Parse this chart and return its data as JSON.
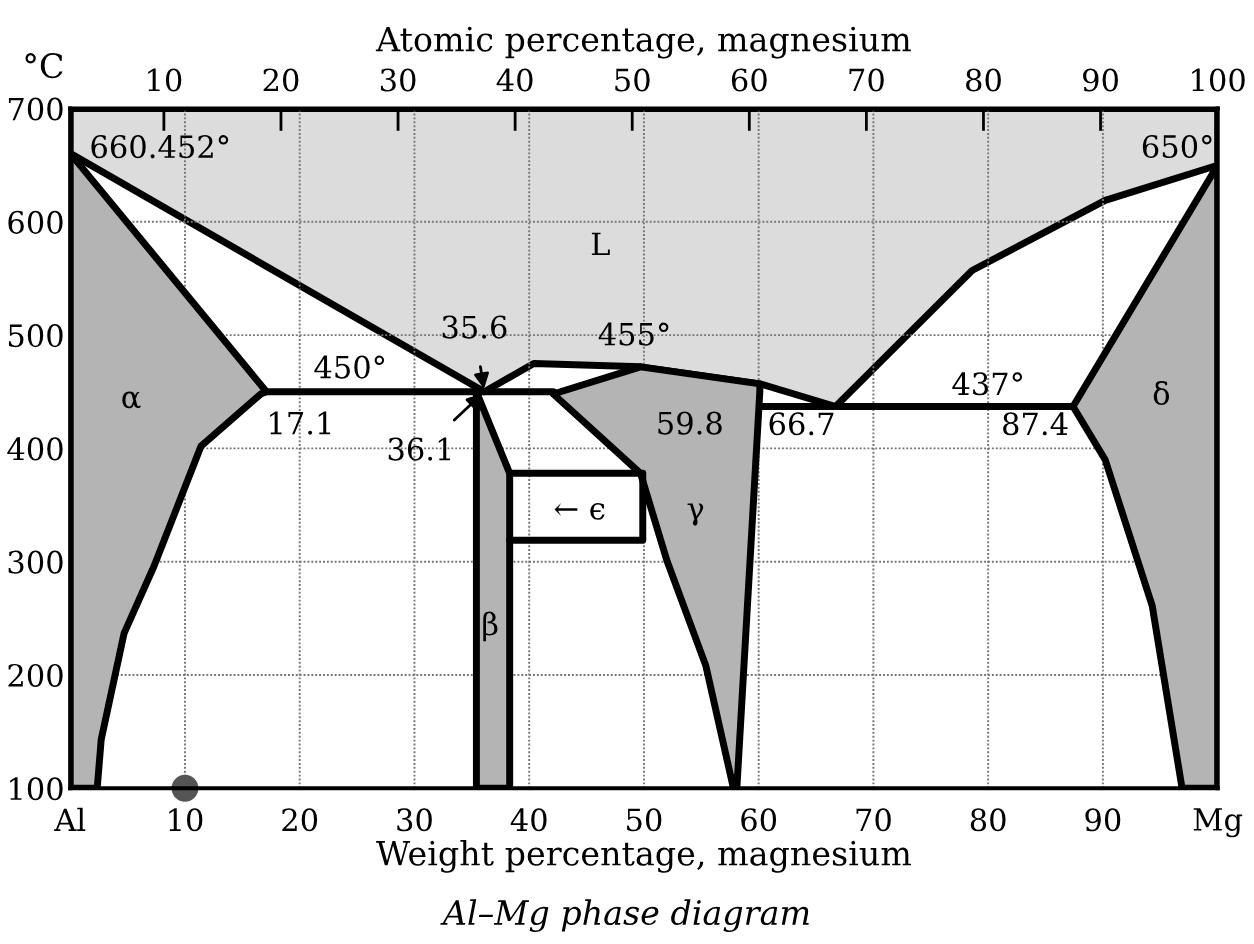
{
  "chart_data": {
    "type": "line",
    "title": "Al–Mg phase diagram",
    "xlabel": "Weight percentage, magnesium",
    "x2label": "Atomic percentage, magnesium",
    "ylabel": "°C",
    "xlim": [
      0,
      100
    ],
    "xticks": [
      {
        "value": 0,
        "label": "Al"
      },
      10,
      20,
      30,
      40,
      50,
      60,
      70,
      80,
      90,
      {
        "value": 100,
        "label": "Mg"
      }
    ],
    "x2lim": [
      2,
      100
    ],
    "x2ticks": [
      10,
      20,
      30,
      40,
      50,
      60,
      70,
      80,
      90,
      100
    ],
    "ylim": [
      100,
      700
    ],
    "yticks": [
      100,
      200,
      300,
      400,
      500,
      600,
      700
    ],
    "grid": true,
    "legend": false,
    "line_style": "solid",
    "marker": "none",
    "series": [
      {
        "type": "area",
        "color": "#dcdcdc",
        "x": [
          0,
          0,
          36.1,
          40.4,
          49.7,
          60.1,
          66.7,
          78.6,
          90.2,
          100,
          100
        ],
        "values": [
          700,
          660.452,
          450,
          475,
          472,
          457,
          437,
          557,
          619,
          650,
          700
        ]
      },
      {
        "type": "area",
        "color": "#b4b4b4",
        "x": [
          0,
          17.1,
          16.6,
          11.4,
          7.3,
          4.7,
          2.7,
          2.35,
          0
        ],
        "values": [
          660.452,
          450,
          448,
          402,
          296,
          237,
          143,
          100,
          100
        ]
      },
      {
        "type": "area",
        "color": "#b4b4b4",
        "x": [
          35.4,
          38.3,
          38.3,
          35.4
        ],
        "values": [
          450,
          378,
          100,
          100
        ]
      },
      {
        "type": "area",
        "color": "#b4b4b4",
        "x": [
          42.1,
          49.7,
          60.1,
          60.1,
          58.1,
          57.8,
          55.4,
          52,
          49.7
        ],
        "values": [
          448,
          472,
          457,
          450,
          100,
          100,
          208,
          301,
          378
        ]
      },
      {
        "type": "area",
        "color": "#b4b4b4",
        "x": [
          87.4,
          100,
          100,
          96.9,
          94.3,
          90.2
        ],
        "values": [
          437,
          650,
          100,
          100,
          261,
          390
        ]
      },
      {
        "color": "#000000",
        "x": [
          38.3,
          49.9,
          49.9,
          38.3
        ],
        "values": [
          378,
          378,
          319,
          319
        ]
      },
      {
        "color": "#000000",
        "x": [
          17.1,
          42.1
        ],
        "values": [
          450,
          450
        ]
      },
      {
        "color": "#000000",
        "x": [
          60.1,
          87.4
        ],
        "values": [
          437,
          437
        ]
      },
      {
        "type": "scatter",
        "color": "#555555",
        "marker": "circle",
        "x": [
          10
        ],
        "values": [
          100
        ]
      }
    ],
    "annotations": [
      {
        "text": "660.452°",
        "x": 0,
        "y": 660.452
      },
      "L",
      {
        "text": "35.6",
        "x": 36.1,
        "y": 450
      },
      {
        "text": "450°",
        "x": 24.4,
        "y": 450
      },
      {
        "text": "17.1",
        "x": 17.1,
        "y": 450
      },
      {
        "text": "36.1",
        "x": 36.1,
        "y": 450
      },
      {
        "text": "455°",
        "x": 49.7,
        "y": 472
      },
      "α",
      "← ϵ",
      "β",
      "γ",
      {
        "text": "59.8",
        "x": 60.1,
        "y": 450
      },
      {
        "text": "66.7",
        "x": 66.7,
        "y": 437
      },
      {
        "text": "437°",
        "x": 80,
        "y": 437
      },
      {
        "text": "87.4",
        "x": 87.4,
        "y": 437
      },
      "δ",
      {
        "text": "650°",
        "x": 100,
        "y": 650
      }
    ]
  }
}
